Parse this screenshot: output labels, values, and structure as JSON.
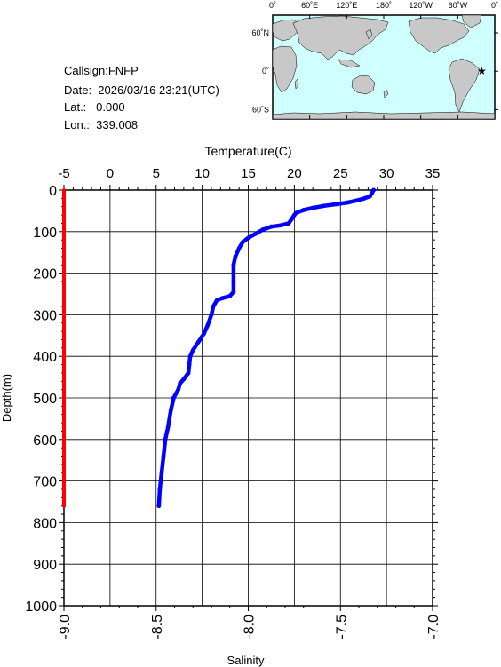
{
  "info": {
    "callsign": "Callsign:FNFP",
    "date": "Date:  2026/03/16 23:21(UTC)",
    "lat": "Lat.:   0.000",
    "lon": "Lon.:  339.008"
  },
  "map": {
    "lon_labels": [
      "0˚",
      "60˚E",
      "120˚E",
      "180˚",
      "120˚W",
      "60˚W",
      "0˚"
    ],
    "lat_labels": [
      "60˚N",
      "0˚",
      "60˚S"
    ],
    "marker": {
      "lon": 339.008,
      "lat": 0.0,
      "symbol": "★"
    },
    "colors": {
      "ocean": "#cfffff",
      "land": "#c8c8c8",
      "marker": "#ff0000"
    }
  },
  "chart_data": {
    "type": "line",
    "xlabel_top": "Temperature(C)",
    "xlabel_bottom": "Salinity",
    "ylabel": "Depth(m)",
    "temperature_axis": {
      "range": [
        -5,
        35
      ],
      "ticks": [
        "-5",
        "0",
        "5",
        "10",
        "15",
        "20",
        "25",
        "30",
        "35"
      ]
    },
    "salinity_axis": {
      "range": [
        -9.0,
        -7.0
      ],
      "ticks": [
        "-9.0",
        "-8.5",
        "-8.0",
        "-7.5",
        "-7.0"
      ]
    },
    "depth_axis": {
      "range": [
        0,
        1000
      ],
      "inverted": true,
      "ticks": [
        "0",
        "100",
        "200",
        "300",
        "400",
        "500",
        "600",
        "700",
        "800",
        "900",
        "1000"
      ]
    },
    "grid": true,
    "series": [
      {
        "name": "Temperature",
        "color": "#0000ff",
        "axis": "temperature",
        "points": [
          [
            28.6,
            0
          ],
          [
            28.4,
            8
          ],
          [
            28.2,
            15
          ],
          [
            27.6,
            20
          ],
          [
            26.8,
            25
          ],
          [
            25.8,
            30
          ],
          [
            24.6,
            34
          ],
          [
            23.2,
            38
          ],
          [
            22.0,
            43
          ],
          [
            21.0,
            48
          ],
          [
            20.2,
            55
          ],
          [
            20.0,
            60
          ],
          [
            19.7,
            70
          ],
          [
            19.4,
            80
          ],
          [
            18.5,
            85
          ],
          [
            17.5,
            88
          ],
          [
            16.6,
            95
          ],
          [
            15.8,
            105
          ],
          [
            15.0,
            115
          ],
          [
            14.4,
            125
          ],
          [
            14.0,
            140
          ],
          [
            13.6,
            160
          ],
          [
            13.4,
            180
          ],
          [
            13.4,
            200
          ],
          [
            13.4,
            220
          ],
          [
            13.4,
            245
          ],
          [
            13.0,
            255
          ],
          [
            12.2,
            260
          ],
          [
            11.6,
            265
          ],
          [
            11.2,
            280
          ],
          [
            11.0,
            300
          ],
          [
            10.6,
            325
          ],
          [
            10.2,
            345
          ],
          [
            9.6,
            365
          ],
          [
            9.0,
            385
          ],
          [
            8.7,
            400
          ],
          [
            8.6,
            420
          ],
          [
            8.5,
            440
          ],
          [
            8.0,
            455
          ],
          [
            7.6,
            465
          ],
          [
            7.4,
            480
          ],
          [
            6.9,
            500
          ],
          [
            6.6,
            530
          ],
          [
            6.3,
            570
          ],
          [
            6.0,
            600
          ],
          [
            5.8,
            640
          ],
          [
            5.6,
            680
          ],
          [
            5.4,
            720
          ],
          [
            5.3,
            760
          ]
        ]
      },
      {
        "name": "Salinity",
        "color": "#ff0000",
        "axis": "salinity",
        "points": [
          [
            -9.0,
            0
          ],
          [
            -9.0,
            760
          ]
        ]
      }
    ]
  }
}
